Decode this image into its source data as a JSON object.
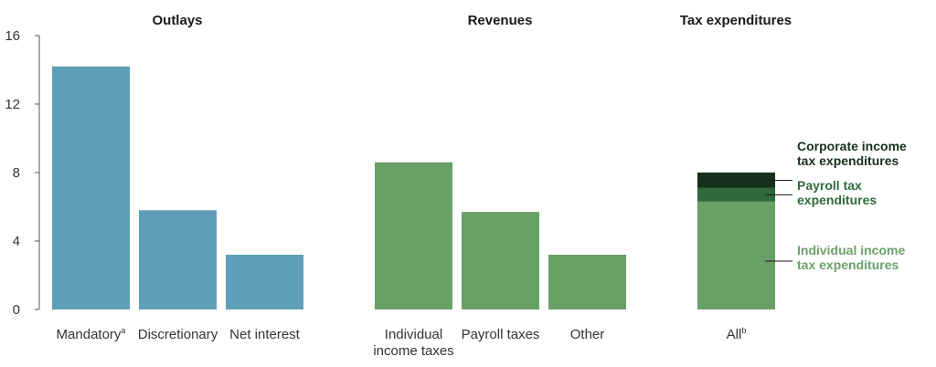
{
  "chart_data": {
    "type": "bar",
    "ylim": [
      0,
      16
    ],
    "yticks": [
      "0",
      "4",
      "8",
      "12",
      "16"
    ],
    "colors": {
      "outlays": "#5f9eb8",
      "revenues": "#68a066",
      "individual": "#68a066",
      "payroll": "#2f6a3a",
      "corporate": "#17301b",
      "annotation_individual": "#6aa067",
      "annotation_payroll": "#2f6a3a",
      "annotation_corporate": "#17301b"
    },
    "panels": [
      {
        "title": "Outlays",
        "bars": [
          {
            "label": "Mandatory",
            "sup": "a",
            "value": 14.2
          },
          {
            "label": "Discretionary",
            "sup": "",
            "value": 5.8
          },
          {
            "label": "Net interest",
            "sup": "",
            "value": 3.2
          }
        ]
      },
      {
        "title": "Revenues",
        "bars": [
          {
            "label": "Individual\nincome taxes",
            "sup": "",
            "value": 8.6
          },
          {
            "label": "Payroll taxes",
            "sup": "",
            "value": 5.7
          },
          {
            "label": "Other",
            "sup": "",
            "value": 3.2
          }
        ]
      },
      {
        "title": "Tax expenditures",
        "bars": [
          {
            "label": "All",
            "sup": "b",
            "stack": [
              {
                "name": "Individual income tax expenditures",
                "value": 6.3
              },
              {
                "name": "Payroll tax expenditures",
                "value": 0.8
              },
              {
                "name": "Corporate income tax expenditures",
                "value": 0.9
              }
            ]
          }
        ]
      }
    ],
    "annotations": [
      {
        "lines": [
          "Corporate income",
          "tax expenditures"
        ]
      },
      {
        "lines": [
          "Payroll tax",
          "expenditures"
        ]
      },
      {
        "lines": [
          "Individual income",
          "tax expenditures"
        ]
      }
    ]
  }
}
